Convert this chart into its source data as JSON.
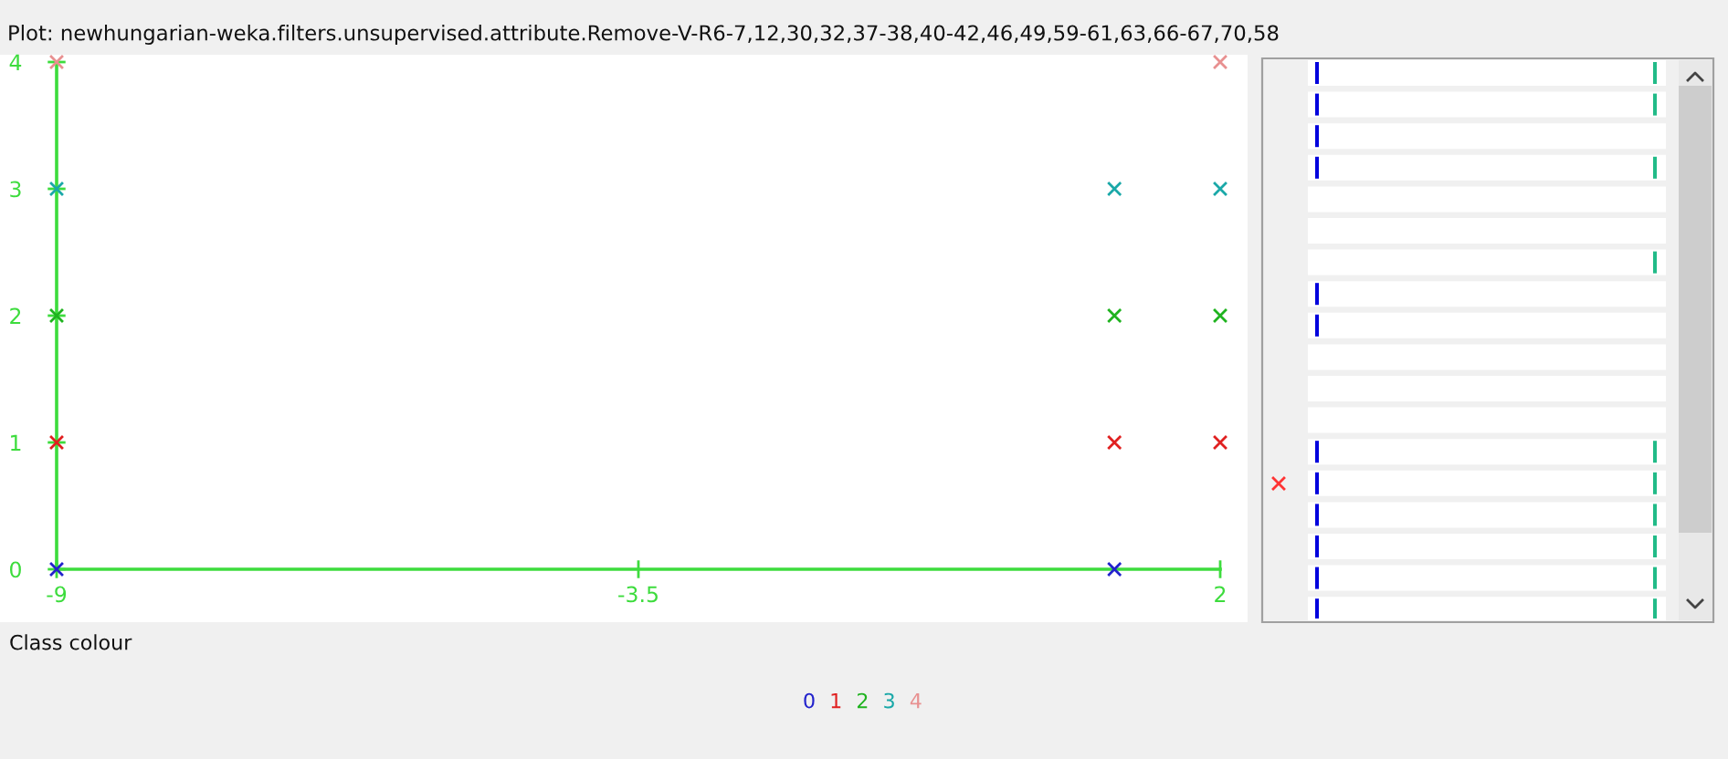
{
  "chart_data": {
    "type": "scatter",
    "title": "Plot: newhungarian-weka.filters.unsupervised.attribute.Remove-V-R6-7,12,30,32,37-38,40-42,46,49,59-61,63,66-67,70,58",
    "legend_title": "Class colour",
    "xlim": [
      -9,
      2
    ],
    "ylim": [
      0,
      4
    ],
    "xticks": [
      -9,
      -3.5,
      2
    ],
    "yticks": [
      0,
      1,
      2,
      3,
      4
    ],
    "marker": "cross",
    "legend": "bottom",
    "series": [
      {
        "name": "0",
        "color": "#2222cc",
        "x": [
          -9,
          1
        ],
        "values": [
          0,
          0
        ]
      },
      {
        "name": "1",
        "color": "#e02020",
        "x": [
          -9,
          1,
          2
        ],
        "values": [
          1,
          1,
          1
        ]
      },
      {
        "name": "2",
        "color": "#1fb31f",
        "x": [
          -9,
          1,
          2
        ],
        "values": [
          2,
          2,
          2
        ]
      },
      {
        "name": "3",
        "color": "#1aa8a8",
        "x": [
          -9,
          1,
          2
        ],
        "values": [
          3,
          3,
          3
        ]
      },
      {
        "name": "4",
        "color": "#e89090",
        "x": [
          -9,
          2
        ],
        "values": [
          4,
          4
        ]
      }
    ]
  }
}
